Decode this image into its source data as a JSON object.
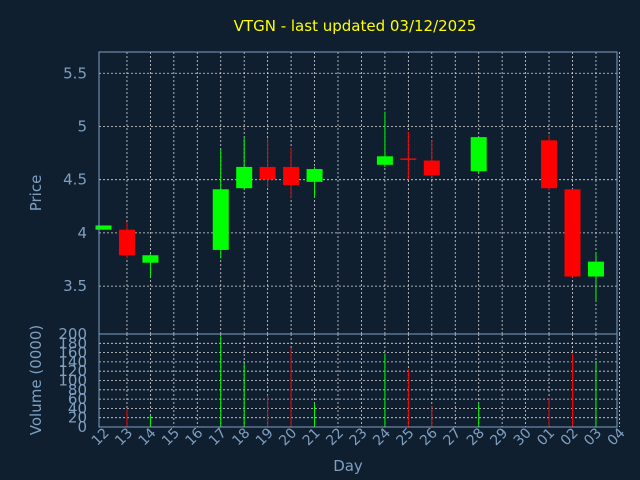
{
  "chart_data": {
    "type": "candlestick",
    "title": "VTGN - last updated 03/12/2025",
    "xlabel": "Day",
    "price_panel": {
      "ylabel": "Price",
      "ylim": [
        3.05,
        5.7
      ],
      "yticks": [
        "3.5",
        "4",
        "4.5",
        "5",
        "5.5"
      ],
      "ytick_values": [
        3.5,
        4.0,
        4.5,
        5.0,
        5.5
      ]
    },
    "volume_panel": {
      "ylabel": "Volume (0000)",
      "ylim": [
        0,
        200
      ],
      "yticks": [
        "0",
        "20",
        "40",
        "60",
        "80",
        "100",
        "120",
        "140",
        "160",
        "180",
        "200"
      ],
      "ytick_values": [
        0,
        20,
        40,
        60,
        80,
        100,
        120,
        140,
        160,
        180,
        200
      ]
    },
    "x_tick_labels": [
      "12",
      "13",
      "14",
      "15",
      "16",
      "17",
      "18",
      "19",
      "20",
      "21",
      "22",
      "23",
      "24",
      "25",
      "26",
      "27",
      "28",
      "29",
      "30",
      "01",
      "02",
      "03",
      "04"
    ],
    "candles": [
      {
        "day": "12",
        "open": 4.03,
        "close": 4.07,
        "high": 4.07,
        "low": 4.03,
        "volume": 0
      },
      {
        "day": "13",
        "open": 4.03,
        "close": 3.79,
        "high": 4.1,
        "low": 3.76,
        "volume": 38
      },
      {
        "day": "14",
        "open": 3.72,
        "close": 3.79,
        "high": 3.8,
        "low": 3.58,
        "volume": 25
      },
      {
        "day": "15",
        "open": null,
        "close": null,
        "high": null,
        "low": null,
        "volume": 0
      },
      {
        "day": "16",
        "open": null,
        "close": null,
        "high": null,
        "low": null,
        "volume": 0
      },
      {
        "day": "17",
        "open": 3.84,
        "close": 4.41,
        "high": 4.79,
        "low": 3.76,
        "volume": 195
      },
      {
        "day": "18",
        "open": 4.42,
        "close": 4.62,
        "high": 4.89,
        "low": 4.41,
        "volume": 135
      },
      {
        "day": "19",
        "open": 4.62,
        "close": 4.5,
        "high": 4.89,
        "low": 4.43,
        "volume": 68
      },
      {
        "day": "20",
        "open": 4.62,
        "close": 4.45,
        "high": 4.8,
        "low": 4.33,
        "volume": 170
      },
      {
        "day": "21",
        "open": 4.48,
        "close": 4.6,
        "high": 4.62,
        "low": 4.33,
        "volume": 52
      },
      {
        "day": "22",
        "open": null,
        "close": null,
        "high": null,
        "low": null,
        "volume": 0
      },
      {
        "day": "23",
        "open": null,
        "close": null,
        "high": null,
        "low": null,
        "volume": 0
      },
      {
        "day": "24",
        "open": 4.64,
        "close": 4.72,
        "high": 5.14,
        "low": 4.62,
        "volume": 158
      },
      {
        "day": "25",
        "open": 4.7,
        "close": 4.69,
        "high": 4.95,
        "low": 4.5,
        "volume": 125
      },
      {
        "day": "26",
        "open": 4.68,
        "close": 4.54,
        "high": 4.87,
        "low": 4.52,
        "volume": 46
      },
      {
        "day": "27",
        "open": null,
        "close": null,
        "high": null,
        "low": null,
        "volume": 0
      },
      {
        "day": "28",
        "open": 4.58,
        "close": 4.9,
        "high": 4.9,
        "low": 4.56,
        "volume": 52
      },
      {
        "day": "29",
        "open": null,
        "close": null,
        "high": null,
        "low": null,
        "volume": 0
      },
      {
        "day": "30",
        "open": null,
        "close": null,
        "high": null,
        "low": null,
        "volume": 0
      },
      {
        "day": "01",
        "open": 4.87,
        "close": 4.42,
        "high": 4.92,
        "low": 4.4,
        "volume": 62
      },
      {
        "day": "02",
        "open": 4.41,
        "close": 3.59,
        "high": 4.41,
        "low": 3.58,
        "volume": 158
      },
      {
        "day": "03",
        "open": 3.59,
        "close": 3.73,
        "high": 3.82,
        "low": 3.35,
        "volume": 140
      },
      {
        "day": "04",
        "open": null,
        "close": null,
        "high": null,
        "low": null,
        "volume": 0
      }
    ],
    "grid": true,
    "colors": {
      "background": "#0f1f30",
      "up": "#00ff00",
      "down": "#ff0000",
      "title": "#ffff00",
      "axis_text": "#7f9fc0",
      "frame": "#7f9fc0",
      "grid": "#d8d8d8"
    }
  }
}
